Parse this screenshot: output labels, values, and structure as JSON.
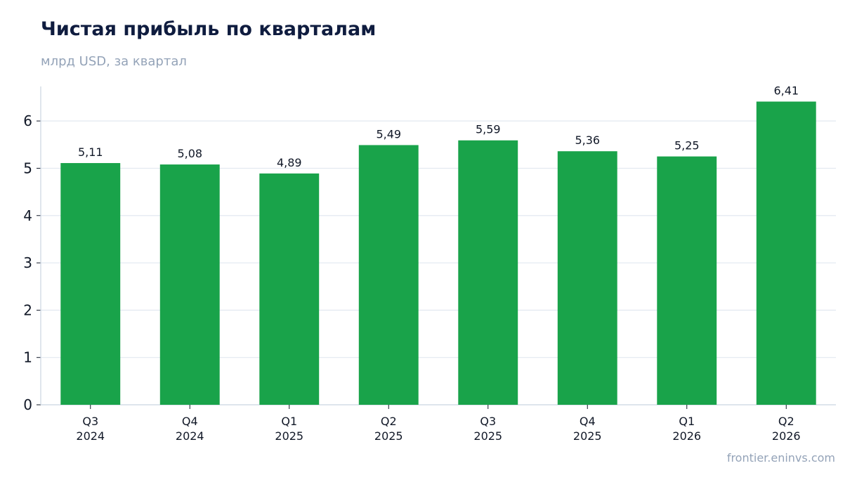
{
  "title": "Чистая прибыль по кварталам",
  "subtitle": "млрд USD, за квартал",
  "footer": "frontier.eninvs.com",
  "colors": {
    "bar": "#19a34a",
    "title": "#0f1c3f",
    "muted": "#94a3b8",
    "grid": "#e2e8f0",
    "axis": "#cbd5e1",
    "label": "#111827"
  },
  "chart_data": {
    "type": "bar",
    "categories": [
      [
        "Q3",
        "2024"
      ],
      [
        "Q4",
        "2024"
      ],
      [
        "Q1",
        "2025"
      ],
      [
        "Q2",
        "2025"
      ],
      [
        "Q3",
        "2025"
      ],
      [
        "Q4",
        "2025"
      ],
      [
        "Q1",
        "2026"
      ],
      [
        "Q2",
        "2026"
      ]
    ],
    "values": [
      5.11,
      5.08,
      4.89,
      5.49,
      5.59,
      5.36,
      5.25,
      6.41
    ],
    "value_labels": [
      "5,11",
      "5,08",
      "4,89",
      "5,49",
      "5,59",
      "5,36",
      "5,25",
      "6,41"
    ],
    "yticks": [
      0,
      1,
      2,
      3,
      4,
      5,
      6
    ],
    "ylim": [
      0,
      6.73
    ],
    "grid": true,
    "legend": "none"
  }
}
